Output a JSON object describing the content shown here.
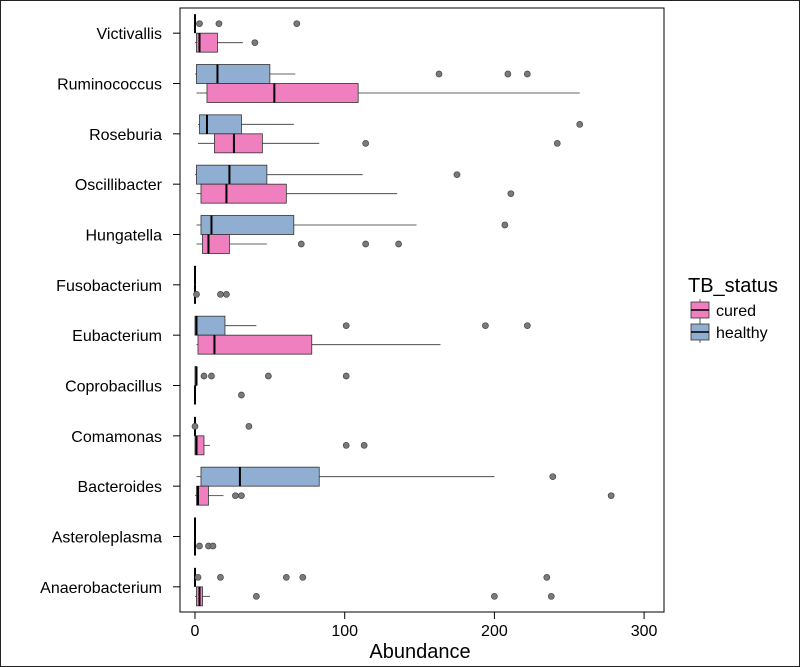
{
  "chart_data": {
    "type": "boxplot",
    "orientation": "horizontal",
    "xlabel": "Abundance",
    "xlim": [
      -10,
      315
    ],
    "x_ticks": [
      0,
      100,
      200,
      300
    ],
    "grid": false,
    "legend": {
      "title": "TB_status",
      "placement": "right",
      "entries": [
        {
          "name": "cured",
          "color": "#ef7fbf"
        },
        {
          "name": "healthy",
          "color": "#90aed1"
        }
      ]
    },
    "categories": [
      "Victivallis",
      "Ruminococcus",
      "Roseburia",
      "Oscillibacter",
      "Hungatella",
      "Fusobacterium",
      "Eubacterium",
      "Coprobacillus",
      "Comamonas",
      "Bacteroides",
      "Asteroleplasma",
      "Anaerobacterium"
    ],
    "series": [
      {
        "name": "healthy",
        "color": "#90aed1",
        "boxes": [
          {
            "whisker_low": 0,
            "q1": 0,
            "median": 0,
            "q3": 0,
            "whisker_high": 0,
            "outliers": [
              3,
              16,
              68
            ]
          },
          {
            "whisker_low": 0,
            "q1": 1,
            "median": 15,
            "q3": 50,
            "whisker_high": 67,
            "outliers": [
              163,
              209,
              222
            ]
          },
          {
            "whisker_low": 2,
            "q1": 3,
            "median": 8,
            "q3": 31,
            "whisker_high": 66,
            "outliers": [
              257
            ]
          },
          {
            "whisker_low": 0,
            "q1": 1,
            "median": 23,
            "q3": 48,
            "whisker_high": 112,
            "outliers": [
              175
            ]
          },
          {
            "whisker_low": 1,
            "q1": 4,
            "median": 11,
            "q3": 66,
            "whisker_high": 148,
            "outliers": [
              207
            ]
          },
          {
            "whisker_low": 0,
            "q1": 0,
            "median": 0,
            "q3": 0,
            "whisker_high": 0,
            "outliers": []
          },
          {
            "whisker_low": 0,
            "q1": 0,
            "median": 1,
            "q3": 20,
            "whisker_high": 41,
            "outliers": [
              101,
              194,
              222
            ]
          },
          {
            "whisker_low": 0,
            "q1": 0,
            "median": 1,
            "q3": 1,
            "whisker_high": 1,
            "outliers": [
              6,
              11,
              49,
              101
            ]
          },
          {
            "whisker_low": 0,
            "q1": 0,
            "median": 0,
            "q3": 0,
            "whisker_high": 0,
            "outliers": [
              0,
              36
            ]
          },
          {
            "whisker_low": 1,
            "q1": 4,
            "median": 30,
            "q3": 83,
            "whisker_high": 200,
            "outliers": [
              239
            ]
          },
          {
            "whisker_low": 0,
            "q1": 0,
            "median": 0,
            "q3": 0,
            "whisker_high": 0,
            "outliers": []
          },
          {
            "whisker_low": 0,
            "q1": 0,
            "median": 0,
            "q3": 0,
            "whisker_high": 0,
            "outliers": [
              2,
              17,
              61,
              72,
              235
            ]
          }
        ]
      },
      {
        "name": "cured",
        "color": "#ef7fbf",
        "boxes": [
          {
            "whisker_low": 0,
            "q1": 1,
            "median": 3,
            "q3": 15,
            "whisker_high": 32,
            "outliers": [
              40
            ]
          },
          {
            "whisker_low": 1,
            "q1": 8,
            "median": 53,
            "q3": 109,
            "whisker_high": 257,
            "outliers": []
          },
          {
            "whisker_low": 2,
            "q1": 13,
            "median": 26,
            "q3": 45,
            "whisker_high": 83,
            "outliers": [
              114,
              242
            ]
          },
          {
            "whisker_low": 1,
            "q1": 4,
            "median": 21,
            "q3": 61,
            "whisker_high": 135,
            "outliers": [
              211
            ]
          },
          {
            "whisker_low": 1,
            "q1": 5,
            "median": 9,
            "q3": 23,
            "whisker_high": 48,
            "outliers": [
              71,
              114,
              136
            ]
          },
          {
            "whisker_low": 0,
            "q1": 0,
            "median": 0,
            "q3": 0,
            "whisker_high": 0,
            "outliers": [
              1,
              17,
              21
            ]
          },
          {
            "whisker_low": 1,
            "q1": 2,
            "median": 13,
            "q3": 78,
            "whisker_high": 164,
            "outliers": []
          },
          {
            "whisker_low": 0,
            "q1": 0,
            "median": 0,
            "q3": 0,
            "whisker_high": 0,
            "outliers": [
              31
            ]
          },
          {
            "whisker_low": 0,
            "q1": 0,
            "median": 1,
            "q3": 6,
            "whisker_high": 10,
            "outliers": [
              101,
              113
            ]
          },
          {
            "whisker_low": 0,
            "q1": 1,
            "median": 2,
            "q3": 9,
            "whisker_high": 19,
            "outliers": [
              27,
              31,
              278
            ]
          },
          {
            "whisker_low": 0,
            "q1": 0,
            "median": 0,
            "q3": 0,
            "whisker_high": 0,
            "outliers": [
              3,
              9,
              12
            ]
          },
          {
            "whisker_low": 0,
            "q1": 1,
            "median": 3,
            "q3": 5,
            "whisker_high": 10,
            "outliers": [
              41,
              200,
              238
            ]
          }
        ]
      }
    ]
  }
}
